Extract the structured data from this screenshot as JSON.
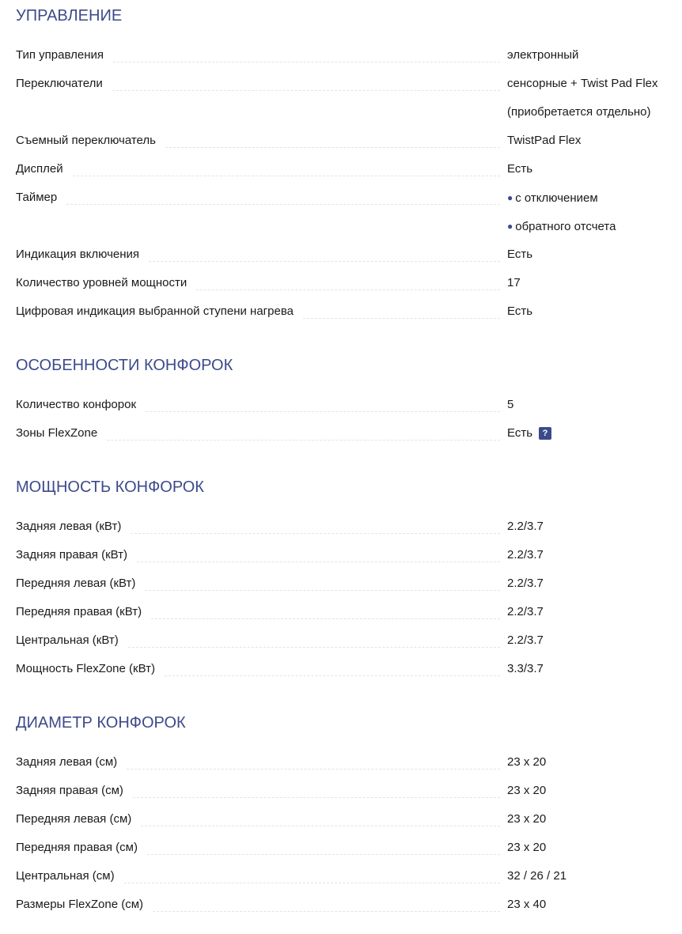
{
  "sections": [
    {
      "title": "УПРАВЛЕНИЕ",
      "rows": [
        {
          "label": "Тип управления",
          "values": [
            "электронный"
          ]
        },
        {
          "label": "Переключатели",
          "values": [
            "сенсорные + Twist Pad Flex",
            "(приобретается отдельно)"
          ]
        },
        {
          "label": "Съемный переключатель",
          "values": [
            "TwistPad Flex"
          ]
        },
        {
          "label": "Дисплей",
          "values": [
            "Есть"
          ]
        },
        {
          "label": "Таймер",
          "values": [
            "с отключением",
            "обратного отсчета"
          ],
          "bulleted": true
        },
        {
          "label": "Индикация включения",
          "values": [
            "Есть"
          ]
        },
        {
          "label": "Количество уровней мощности",
          "values": [
            "17"
          ]
        },
        {
          "label": "Цифровая индикация выбранной ступени нагрева",
          "values": [
            "Есть"
          ]
        }
      ]
    },
    {
      "title": "ОСОБЕННОСТИ КОНФОРОК",
      "rows": [
        {
          "label": "Количество конфорок",
          "values": [
            "5"
          ]
        },
        {
          "label": "Зоны FlexZone",
          "values": [
            "Есть"
          ],
          "help": "?"
        }
      ]
    },
    {
      "title": "МОЩНОСТЬ КОНФОРОК",
      "rows": [
        {
          "label": "Задняя левая (кВт)",
          "values": [
            "2.2/3.7"
          ]
        },
        {
          "label": "Задняя правая (кВт)",
          "values": [
            "2.2/3.7"
          ]
        },
        {
          "label": "Передняя левая (кВт)",
          "values": [
            "2.2/3.7"
          ]
        },
        {
          "label": "Передняя правая (кВт)",
          "values": [
            "2.2/3.7"
          ]
        },
        {
          "label": "Центральная (кВт)",
          "values": [
            "2.2/3.7"
          ]
        },
        {
          "label": "Мощность FlexZone (кВт)",
          "values": [
            "3.3/3.7"
          ]
        }
      ]
    },
    {
      "title": "ДИАМЕТР КОНФОРОК",
      "rows": [
        {
          "label": "Задняя левая (см)",
          "values": [
            "23 x 20"
          ]
        },
        {
          "label": "Задняя правая (см)",
          "values": [
            "23 x 20"
          ]
        },
        {
          "label": "Передняя левая (см)",
          "values": [
            "23 x 20"
          ]
        },
        {
          "label": "Передняя правая (см)",
          "values": [
            "23 x 20"
          ]
        },
        {
          "label": "Центральная (см)",
          "values": [
            "32 / 26 / 21"
          ]
        },
        {
          "label": "Размеры FlexZone (см)",
          "values": [
            "23 x 40"
          ]
        }
      ]
    }
  ],
  "colors": {
    "accent": "#3d4a8a"
  },
  "icons": {
    "bullet": "bullet-dot-icon",
    "help": "question-help-icon"
  }
}
